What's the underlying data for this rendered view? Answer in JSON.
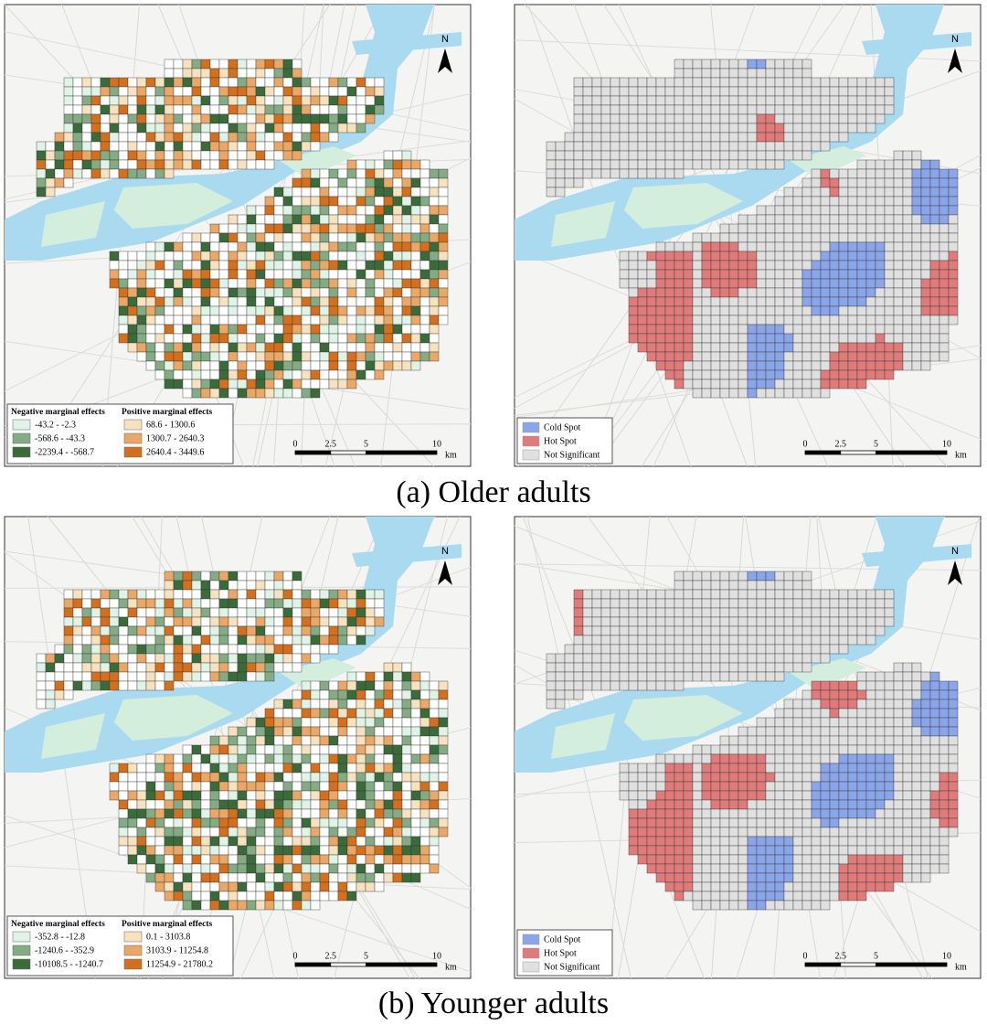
{
  "panels": [
    {
      "caption": "(a) Older adults",
      "maps": [
        {
          "north": "N",
          "legend": {
            "negative_title": "Negative marginal effects",
            "positive_title": "Positive marginal effects",
            "negative": [
              "-43.2 - -2.3",
              "-568.6 - -43.3",
              "-2239.4 - -568.7"
            ],
            "positive": [
              "68.6 - 1300.6",
              "1300.7 - 2640.3",
              "2640.4 - 3449.6"
            ]
          },
          "scale": {
            "ticks": [
              0,
              2.5,
              5,
              10
            ],
            "unit": "km"
          }
        },
        {
          "north": "N",
          "legend": {
            "items": [
              "Cold Spot",
              "Hot Spot",
              "Not Significant"
            ]
          },
          "scale": {
            "ticks": [
              0,
              2.5,
              5,
              10
            ],
            "unit": "km"
          }
        }
      ]
    },
    {
      "caption": "(b) Younger adults",
      "maps": [
        {
          "north": "N",
          "legend": {
            "negative_title": "Negative marginal effects",
            "positive_title": "Positive marginal effects",
            "negative": [
              "-352.8 - -12.8",
              "-1240.6 - -352.9",
              "-10108.5 - -1240.7"
            ],
            "positive": [
              "0.1 - 3103.8",
              "3103.9 - 11254.8",
              "11254.9 - 21780.2"
            ]
          },
          "scale": {
            "ticks": [
              0,
              2.5,
              5,
              10
            ],
            "unit": "km"
          }
        },
        {
          "north": "N",
          "legend": {
            "items": [
              "Cold Spot",
              "Hot Spot",
              "Not Significant"
            ]
          },
          "scale": {
            "ticks": [
              0,
              2.5,
              5,
              10
            ],
            "unit": "km"
          }
        }
      ]
    }
  ]
}
